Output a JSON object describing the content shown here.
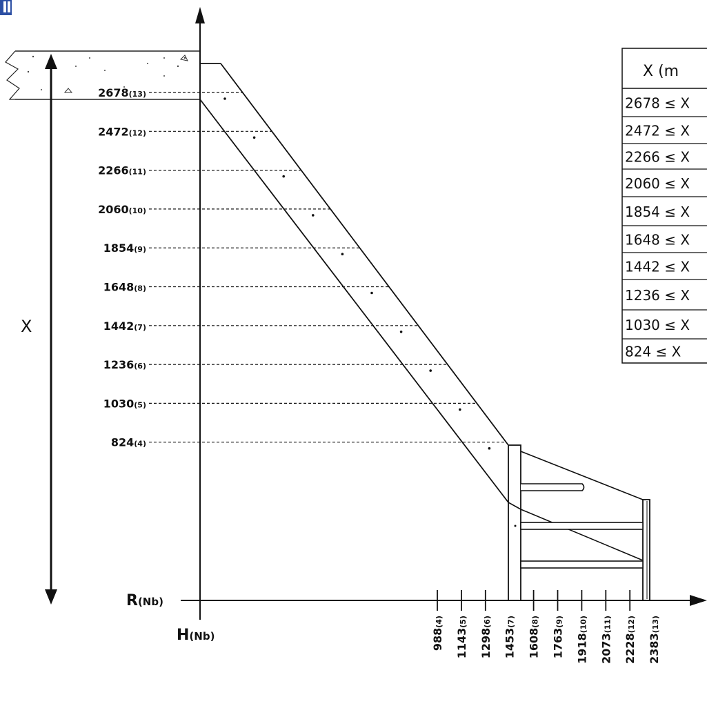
{
  "diagram": {
    "axes": {
      "vertical_axis_label": "H",
      "vertical_axis_label_sub": "(Nb)",
      "horizontal_axis_label": "R",
      "horizontal_axis_label_sub": "(Nb)",
      "height_arrow_label": "X"
    },
    "height_marks": [
      {
        "value": "2678",
        "step": "(13)"
      },
      {
        "value": "2472",
        "step": "(12)"
      },
      {
        "value": "2266",
        "step": "(11)"
      },
      {
        "value": "2060",
        "step": "(10)"
      },
      {
        "value": "1854",
        "step": "(9)"
      },
      {
        "value": "1648",
        "step": "(8)"
      },
      {
        "value": "1442",
        "step": "(7)"
      },
      {
        "value": "1236",
        "step": "(6)"
      },
      {
        "value": "1030",
        "step": "(5)"
      },
      {
        "value": "824",
        "step": "(4)"
      }
    ],
    "run_marks": [
      {
        "value": "988",
        "step": "(4)"
      },
      {
        "value": "1143",
        "step": "(5)"
      },
      {
        "value": "1298",
        "step": "(6)"
      },
      {
        "value": "1453",
        "step": "(7)"
      },
      {
        "value": "1608",
        "step": "(8)"
      },
      {
        "value": "1763",
        "step": "(9)"
      },
      {
        "value": "1918",
        "step": "(10)"
      },
      {
        "value": "2073",
        "step": "(11)"
      },
      {
        "value": "2228",
        "step": "(12)"
      },
      {
        "value": "2383",
        "step": "(13)"
      }
    ],
    "table": {
      "header": "X (m",
      "rows": [
        "2678 ≤ X",
        "2472 ≤ X",
        "2266 ≤ X",
        "2060 ≤ X",
        "1854 ≤ X",
        "1648 ≤ X",
        "1442 ≤ X",
        "1236 ≤ X",
        "1030 ≤ X",
        "824  ≤ X"
      ]
    }
  }
}
